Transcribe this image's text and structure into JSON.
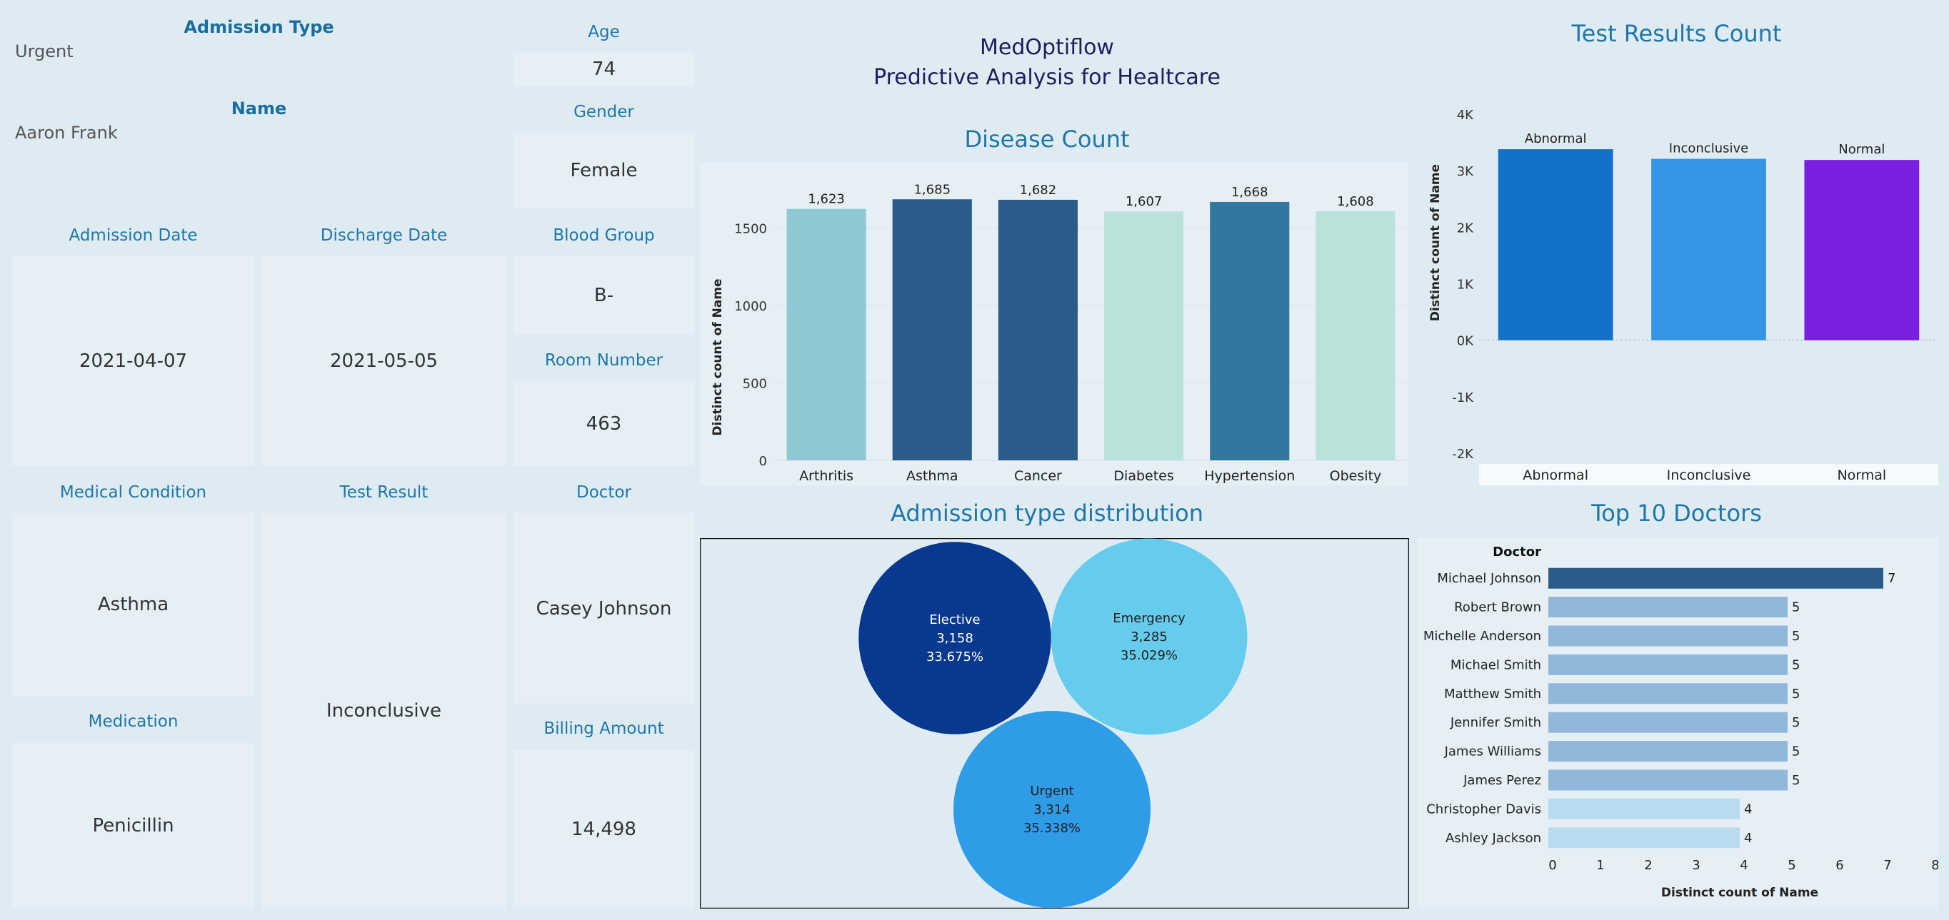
{
  "header": {
    "title_line1": "MedOptiflow",
    "title_line2": "Predictive Analysis for Healtcare"
  },
  "patient": {
    "admission_type_label": "Admission Type",
    "admission_type": "Urgent",
    "name_label": "Name",
    "name": "Aaron Frank",
    "age_label": "Age",
    "age": "74",
    "gender_label": "Gender",
    "gender": "Female",
    "admission_date_label": "Admission Date",
    "admission_date": "2021-04-07",
    "discharge_date_label": "Discharge Date",
    "discharge_date": "2021-05-05",
    "blood_group_label": "Blood Group",
    "blood_group": "B-",
    "room_number_label": "Room Number",
    "room_number": "463",
    "medical_condition_label": "Medical Condition",
    "medical_condition": "Asthma",
    "test_result_label": "Test Result",
    "test_result": "Inconclusive",
    "doctor_label": "Doctor",
    "doctor": "Casey Johnson",
    "medication_label": "Medication",
    "medication": "Penicillin",
    "billing_amount_label": "Billing Amount",
    "billing_amount": "14,498"
  },
  "sections": {
    "disease_count": "Disease Count",
    "test_results_count": "Test Results Count",
    "admission_distribution": "Admission type distribution",
    "top_doctors": "Top 10 Doctors"
  },
  "chart_data": [
    {
      "id": "disease",
      "type": "bar",
      "title": "Disease Count",
      "ylabel": "Distinct count of Name",
      "categories": [
        "Arthritis",
        "Asthma",
        "Cancer",
        "Diabetes",
        "Hypertension",
        "Obesity"
      ],
      "values": [
        1623,
        1685,
        1682,
        1607,
        1668,
        1608
      ],
      "labels": [
        "1,623",
        "1,685",
        "1,682",
        "1,607",
        "1,668",
        "1,608"
      ],
      "colors": [
        "#8fc8d2",
        "#2b5b88",
        "#2b5b88",
        "#b9e3da",
        "#31789e",
        "#b9e3da"
      ],
      "ylim": [
        0,
        1700
      ],
      "yticks": [
        0,
        500,
        1000,
        1500
      ],
      "ytick_labels": [
        "0",
        "500",
        "1000",
        "1500"
      ]
    },
    {
      "id": "tests",
      "type": "bar",
      "title": "Test Results Count",
      "ylabel": "Distinct count of Name",
      "categories": [
        "Abnormal",
        "Inconclusive",
        "Normal"
      ],
      "values": [
        3380,
        3210,
        3190
      ],
      "colors": [
        "#1170c8",
        "#3395e8",
        "#7a1fe0"
      ],
      "ylim": [
        -2000,
        4000
      ],
      "yticks": [
        4000,
        3000,
        2000,
        1000,
        0,
        -1000,
        -2000
      ],
      "ytick_labels": [
        "4K",
        "3K",
        "2K",
        "1K",
        "0K",
        "-1K",
        "-2K"
      ]
    },
    {
      "id": "admission",
      "type": "bubble",
      "title": "Admission type distribution",
      "series": [
        {
          "name": "Elective",
          "value": 3158,
          "value_label": "3,158",
          "pct": "33.675%",
          "color": "#08398e",
          "text_color": "#ffffff"
        },
        {
          "name": "Emergency",
          "value": 3285,
          "value_label": "3,285",
          "pct": "35.029%",
          "color": "#66cced",
          "text_color": "#222222"
        },
        {
          "name": "Urgent",
          "value": 3314,
          "value_label": "3,314",
          "pct": "35.338%",
          "color": "#2f9ce8",
          "text_color": "#222222"
        }
      ]
    },
    {
      "id": "doctors",
      "type": "hbar",
      "title": "Top 10 Doctors",
      "row_header": "Doctor",
      "xlabel": "Distinct count of Name",
      "categories": [
        "Michael Johnson",
        "Robert Brown",
        "Michelle Anderson",
        "Michael Smith",
        "Matthew Smith",
        "Jennifer Smith",
        "James Williams",
        "James Perez",
        "Christopher Davis",
        "Ashley Jackson"
      ],
      "values": [
        7,
        5,
        5,
        5,
        5,
        5,
        5,
        5,
        4,
        4
      ],
      "colors": [
        "#2b5b88",
        "#8fb8da",
        "#8fb8da",
        "#8fb8da",
        "#8fb8da",
        "#8fb8da",
        "#8fb8da",
        "#8fb8da",
        "#b7dcf0",
        "#b7dcf0"
      ],
      "xlim": [
        0,
        8
      ],
      "xticks": [
        0,
        1,
        2,
        3,
        4,
        5,
        6,
        7,
        8
      ]
    }
  ]
}
